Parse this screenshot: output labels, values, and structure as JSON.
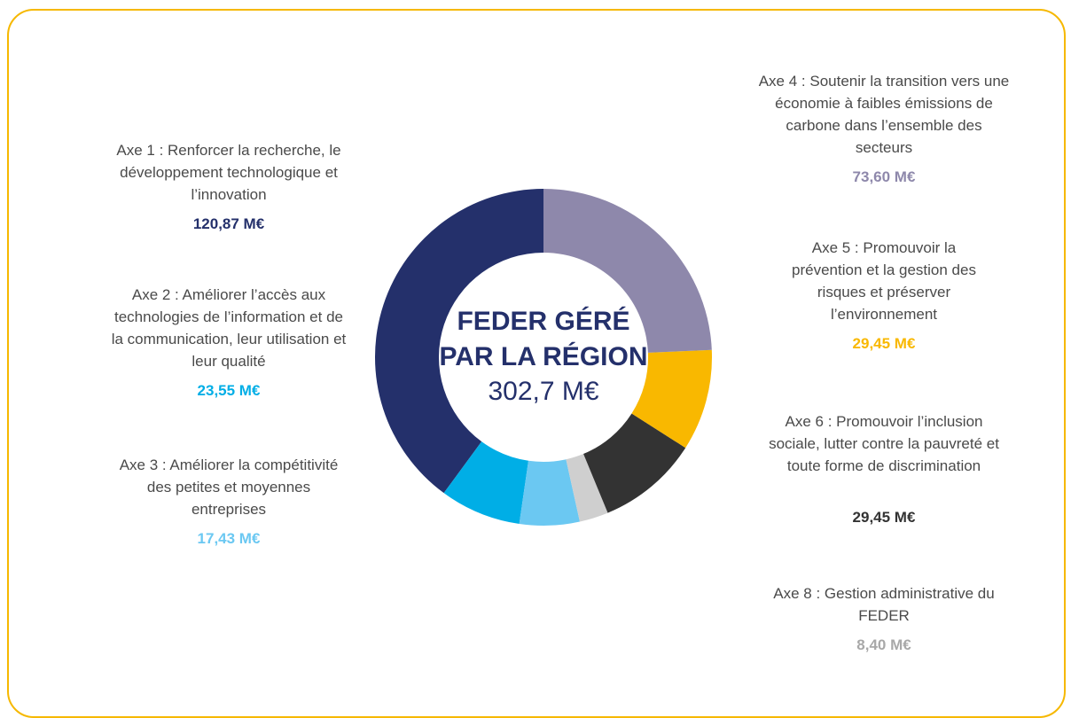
{
  "chart_data": {
    "type": "donut",
    "center_title": [
      "FEDER GÉRÉ",
      "PAR LA RÉGION"
    ],
    "total_label": "302,7 M€",
    "categories": [
      "Axe 4 : Soutenir la transition vers une économie à faibles émissions de carbone dans l’ensemble des secteurs",
      "Axe 5 : Promouvoir la prévention et la gestion des risques et préserver l’environnement",
      "Axe 6 : Promouvoir l’inclusion sociale, lutter contre la pauvreté et toute forme de discrimination",
      "Axe 8 : Gestion administrative du FEDER",
      "Axe 3 : Améliorer la compétitivité des petites et moyennes entreprises",
      "Axe 2 : Améliorer l’accès aux technologies de l’information et de la communication, leur utilisation et leur qualité",
      "Axe 1 : Renforcer la recherche, le développement technologique et l’innovation"
    ],
    "values": [
      73.6,
      29.45,
      29.45,
      8.4,
      17.43,
      23.55,
      120.87
    ],
    "value_labels": [
      "73,60 M€",
      "29,45 M€",
      "29,45 M€",
      "8,40 M€",
      "17,43 M€",
      "23,55 M€",
      "120,87 M€"
    ],
    "colors": [
      "#8e88ab",
      "#f9b800",
      "#333333",
      "#cfcfcf",
      "#6bc8f2",
      "#00aee6",
      "#24306b"
    ]
  }
}
